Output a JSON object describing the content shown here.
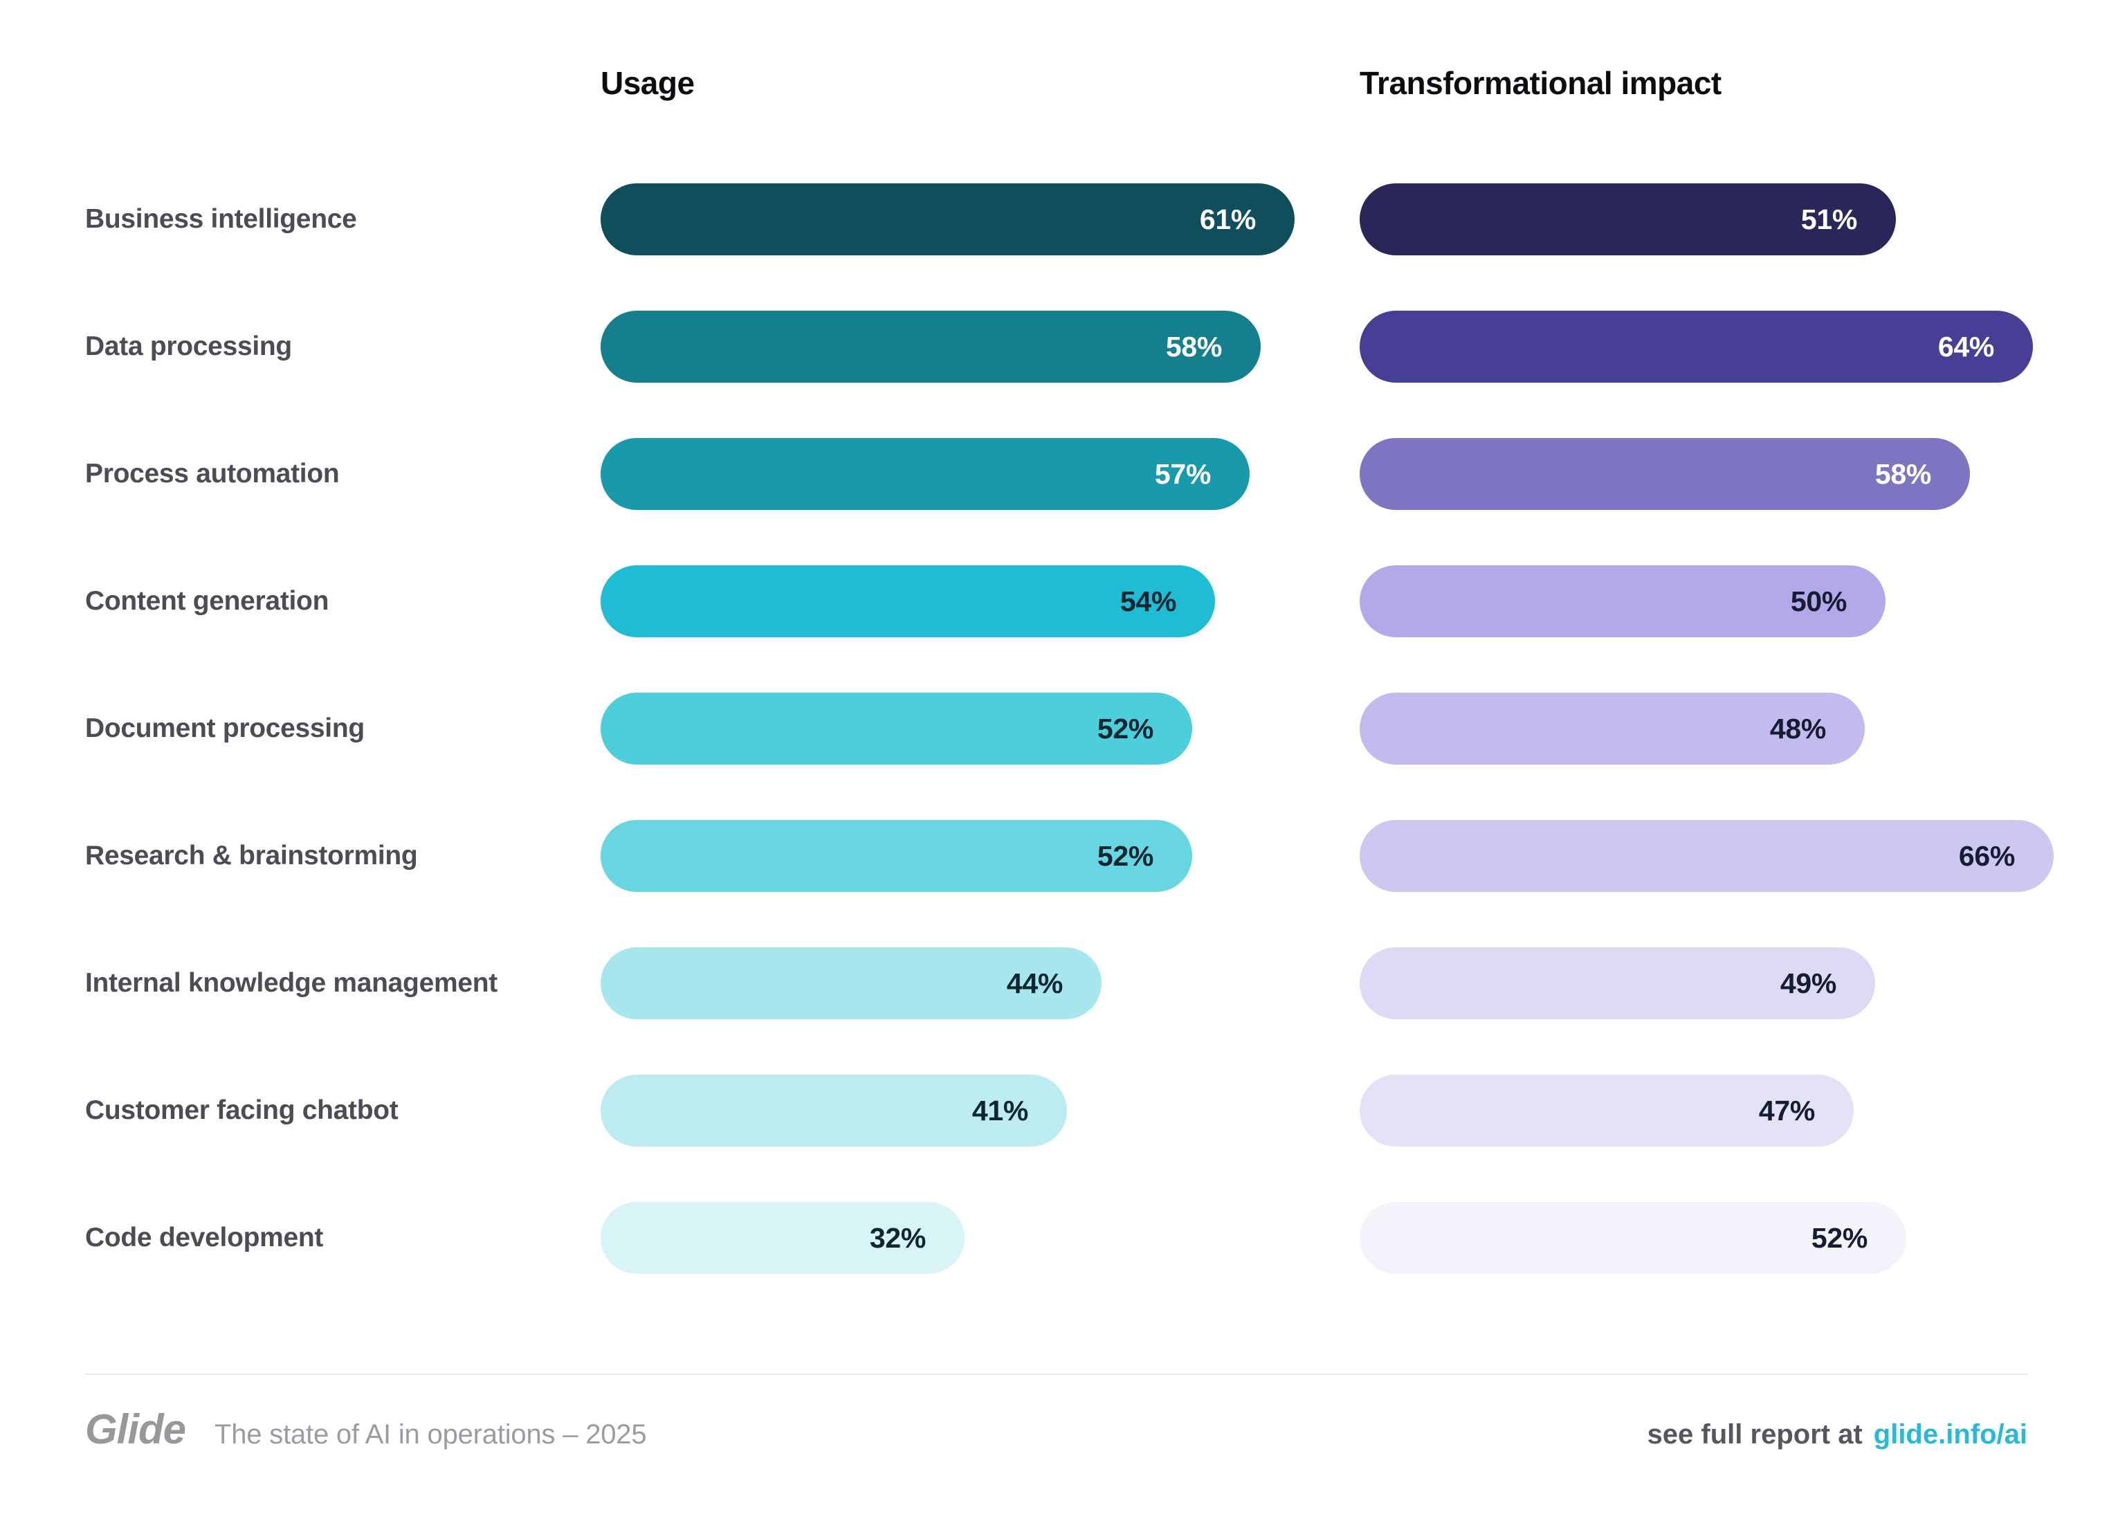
{
  "page": {
    "background": "#ffffff"
  },
  "columns": {
    "usage_label": "Usage",
    "impact_label": "Transformational impact"
  },
  "chart_data": {
    "type": "bar",
    "orientation": "horizontal",
    "title": "",
    "value_suffix": "%",
    "axis": {
      "visible": false,
      "xlim": [
        0,
        70
      ],
      "grid": false
    },
    "legend_position": "column-headers",
    "categories": [
      "Business intelligence",
      "Data processing",
      "Process automation",
      "Content generation",
      "Document processing",
      "Research & brainstorming",
      "Internal knowledge management",
      "Customer facing chatbot",
      "Code development"
    ],
    "series": [
      {
        "name": "Usage",
        "values": [
          61,
          58,
          57,
          54,
          52,
          52,
          44,
          41,
          32
        ],
        "display": [
          "61%",
          "58%",
          "57%",
          "54%",
          "52%",
          "52%",
          "44%",
          "41%",
          "32%"
        ],
        "colors": [
          "#0e4f5b",
          "#15808d",
          "#189aab",
          "#1fbdd3",
          "#4ccfdb",
          "#68d6e1",
          "#a6e7ee",
          "#bcebf1",
          "#d8f4f7"
        ],
        "text_colors": [
          "#ffffff",
          "#ffffff",
          "#ffffff",
          "#0d2630",
          "#0d2630",
          "#0d2630",
          "#0d2630",
          "#0d2630",
          "#0d2630"
        ]
      },
      {
        "name": "Transformational impact",
        "values": [
          51,
          64,
          58,
          50,
          48,
          66,
          49,
          47,
          52
        ],
        "display": [
          "51%",
          "64%",
          "58%",
          "50%",
          "48%",
          "66%",
          "49%",
          "47%",
          "52%"
        ],
        "colors": [
          "#2b2659",
          "#473e96",
          "#7d75c1",
          "#b3a9e8",
          "#c3bbed",
          "#cec8f1",
          "#ded9f5",
          "#e5e1f7",
          "#f4f3fb"
        ],
        "text_colors": [
          "#ffffff",
          "#ffffff",
          "#ffffff",
          "#151d35",
          "#151d35",
          "#151d35",
          "#151d35",
          "#151d35",
          "#151d35"
        ]
      }
    ]
  },
  "footer": {
    "logo": "Glide",
    "tagline": "The state of AI in operations – 2025",
    "cta_prefix": "see full report at",
    "cta_link": "glide.info/ai",
    "link_color": "#27b9d9",
    "divider_color": "#e9e9ec"
  }
}
